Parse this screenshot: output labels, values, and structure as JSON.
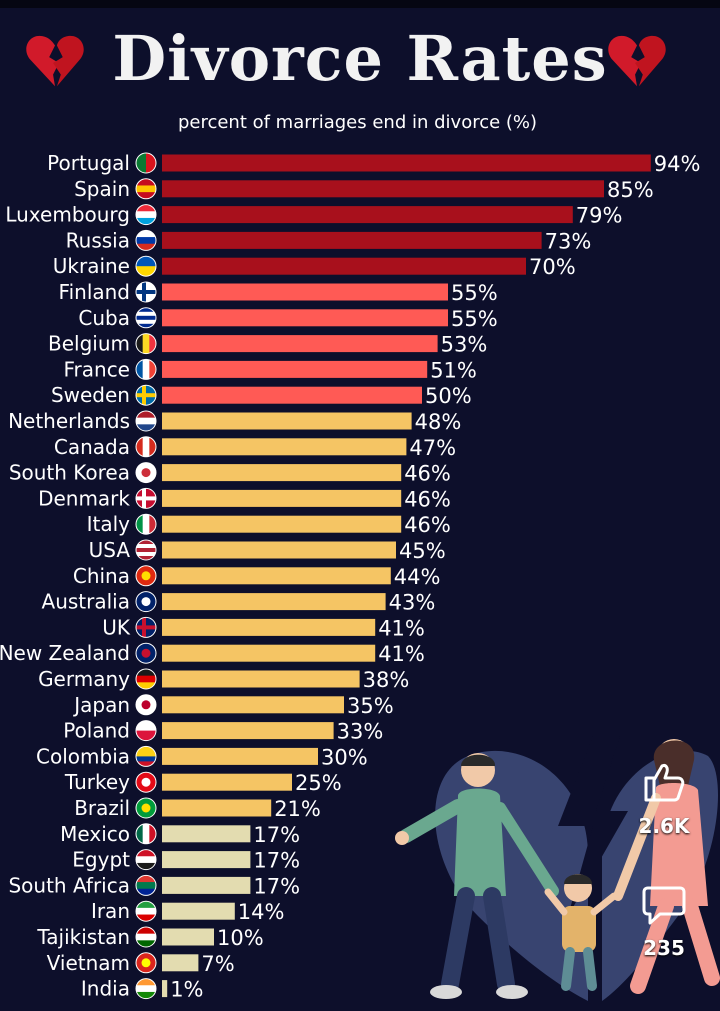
{
  "title": "Divorce Rates",
  "subtitle": "percent of marriages end in divorce (%)",
  "social": {
    "likes": "2.6K",
    "comments": "235"
  },
  "icons": {
    "heart": "broken-heart-icon",
    "like": "thumbs-up-icon",
    "comment": "comment-bubble-icon"
  },
  "colors": {
    "background": "#0d0f2b",
    "tier_70_plus": "#a8101c",
    "tier_50_69": "#ff5a55",
    "tier_20_49": "#f5c564",
    "tier_below_20": "#e3dcb0"
  },
  "chart_data": {
    "type": "bar",
    "orientation": "horizontal",
    "title": "Divorce Rates",
    "subtitle": "percent of marriages end in divorce (%)",
    "categories": [
      "Portugal",
      "Spain",
      "Luxembourg",
      "Russia",
      "Ukraine",
      "Finland",
      "Cuba",
      "Belgium",
      "France",
      "Sweden",
      "Netherlands",
      "Canada",
      "South Korea",
      "Denmark",
      "Italy",
      "USA",
      "China",
      "Australia",
      "UK",
      "New Zealand",
      "Germany",
      "Japan",
      "Poland",
      "Colombia",
      "Turkey",
      "Brazil",
      "Mexico",
      "Egypt",
      "South Africa",
      "Iran",
      "Tajikistan",
      "Vietnam",
      "India"
    ],
    "values": [
      94,
      85,
      79,
      73,
      70,
      55,
      55,
      53,
      51,
      50,
      48,
      47,
      46,
      46,
      46,
      45,
      44,
      43,
      41,
      41,
      38,
      35,
      33,
      30,
      25,
      21,
      17,
      17,
      17,
      14,
      10,
      7,
      1
    ],
    "value_labels": [
      "94%",
      "85%",
      "79%",
      "73%",
      "70%",
      "55%",
      "55%",
      "53%",
      "51%",
      "50%",
      "48%",
      "47%",
      "46%",
      "46%",
      "46%",
      "45%",
      "44%",
      "43%",
      "41%",
      "41%",
      "38%",
      "35%",
      "33%",
      "30%",
      "25%",
      "21%",
      "17%",
      "17%",
      "17%",
      "14%",
      "10%",
      "7%",
      "1%"
    ],
    "flags": [
      "flag-portugal-icon",
      "flag-spain-icon",
      "flag-luxembourg-icon",
      "flag-russia-icon",
      "flag-ukraine-icon",
      "flag-finland-icon",
      "flag-cuba-icon",
      "flag-belgium-icon",
      "flag-france-icon",
      "flag-sweden-icon",
      "flag-netherlands-icon",
      "flag-canada-icon",
      "flag-south-korea-icon",
      "flag-denmark-icon",
      "flag-italy-icon",
      "flag-usa-icon",
      "flag-china-icon",
      "flag-australia-icon",
      "flag-uk-icon",
      "flag-new-zealand-icon",
      "flag-germany-icon",
      "flag-japan-icon",
      "flag-poland-icon",
      "flag-colombia-icon",
      "flag-turkey-icon",
      "flag-brazil-icon",
      "flag-mexico-icon",
      "flag-egypt-icon",
      "flag-south-africa-icon",
      "flag-iran-icon",
      "flag-tajikistan-icon",
      "flag-vietnam-icon",
      "flag-india-icon"
    ],
    "xlim": [
      0,
      94
    ],
    "grid": false,
    "legend": "none"
  }
}
